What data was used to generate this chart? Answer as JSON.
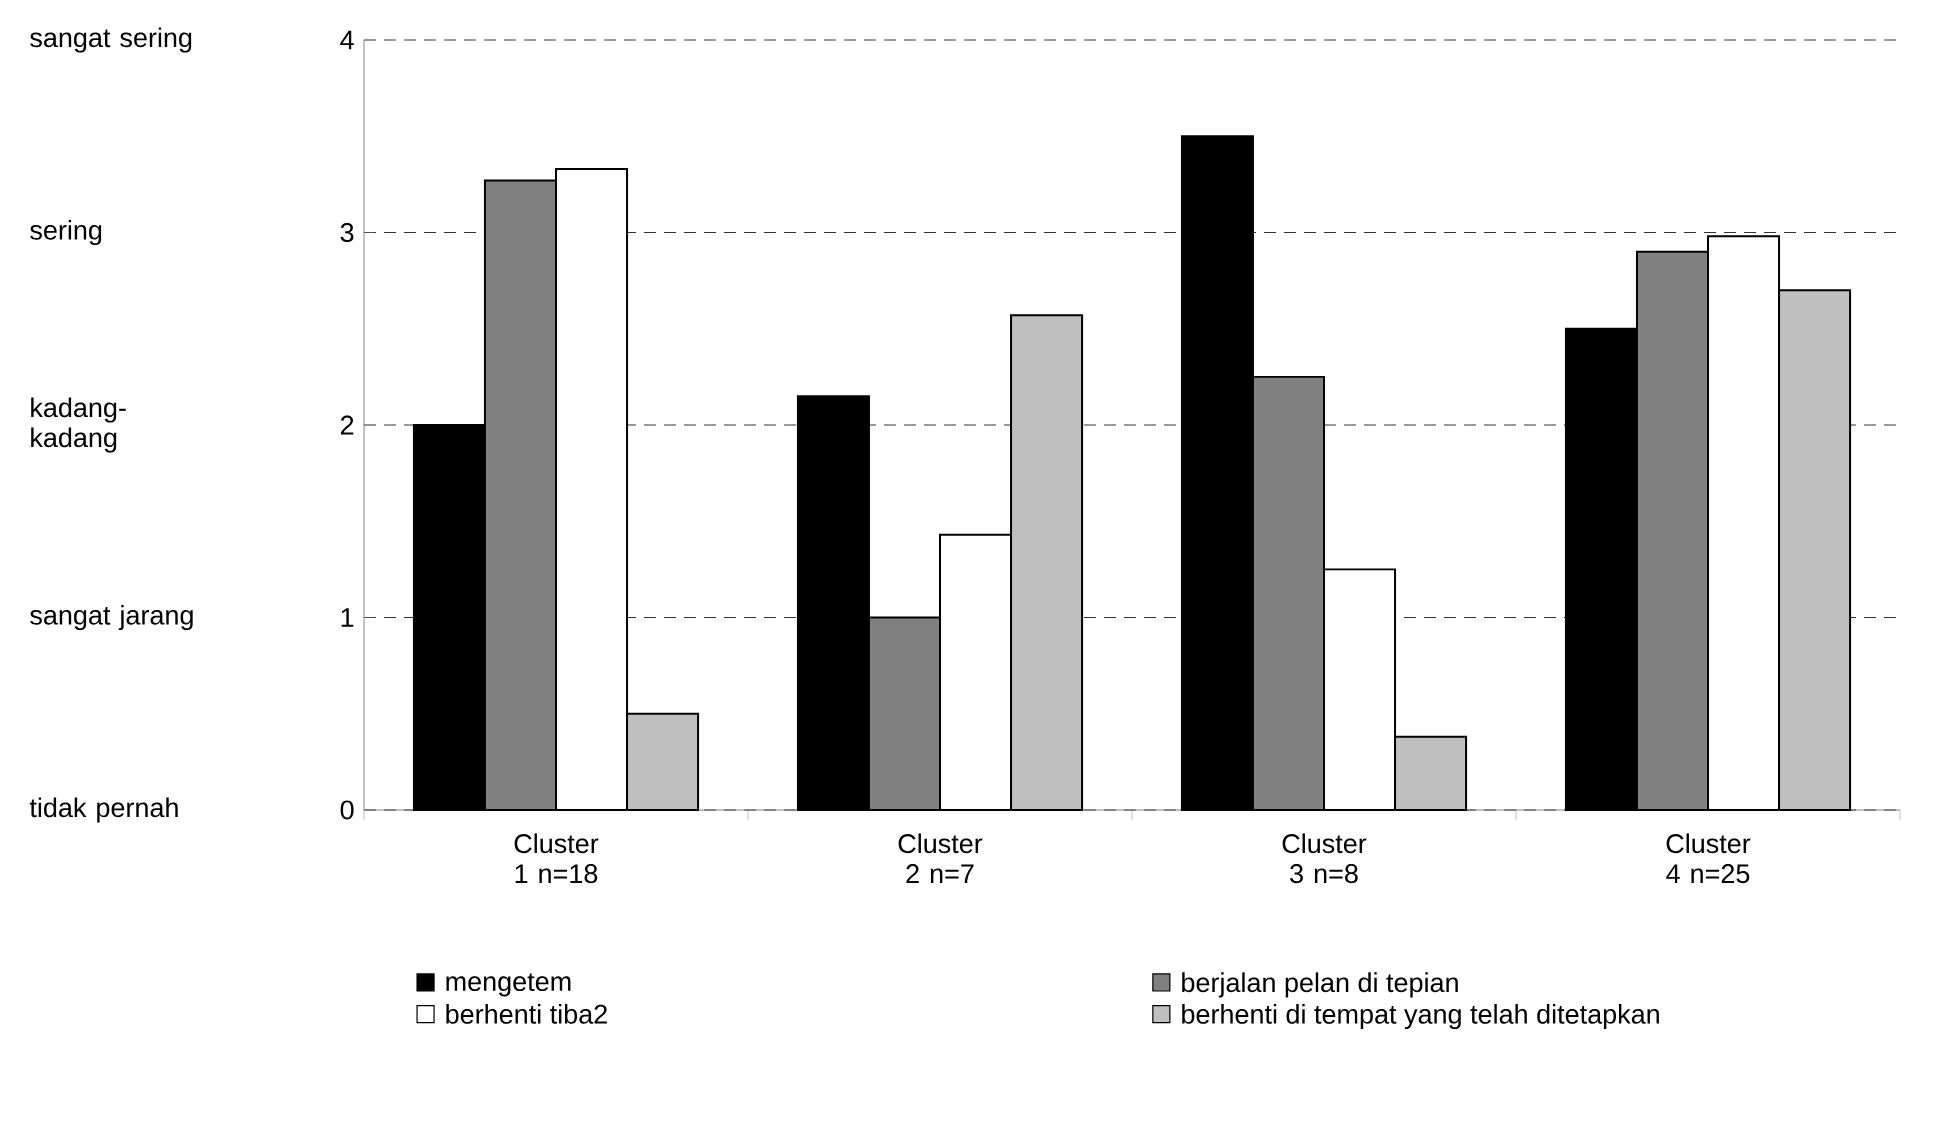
{
  "chart_data": {
    "type": "bar",
    "categories": [
      "Cluster 1 n=18",
      "Cluster 2 n=7",
      "Cluster 3 n=8",
      "Cluster 4 n=25"
    ],
    "series": [
      {
        "name": "mengetem",
        "color": "#000000",
        "values": [
          2.0,
          2.15,
          3.5,
          2.5
        ]
      },
      {
        "name": "berjalan pelan di tepian",
        "color": "#808080",
        "values": [
          3.27,
          1.0,
          2.25,
          2.9
        ]
      },
      {
        "name": "berhenti tiba2",
        "color": "#ffffff",
        "values": [
          3.33,
          1.43,
          1.25,
          2.98
        ]
      },
      {
        "name": "berhenti di tempat yang telah ditetapkan",
        "color": "#bfbfbf",
        "values": [
          0.5,
          2.57,
          0.38,
          2.7
        ]
      }
    ],
    "ylim": [
      0,
      4
    ],
    "yticks": [
      0,
      1,
      2,
      3,
      4
    ],
    "grid": "y",
    "legend": "bottom",
    "annotations": [
      "sangat sering",
      "sering",
      "kadang-kadang",
      "sangat jarang",
      "tidak pernah"
    ]
  }
}
